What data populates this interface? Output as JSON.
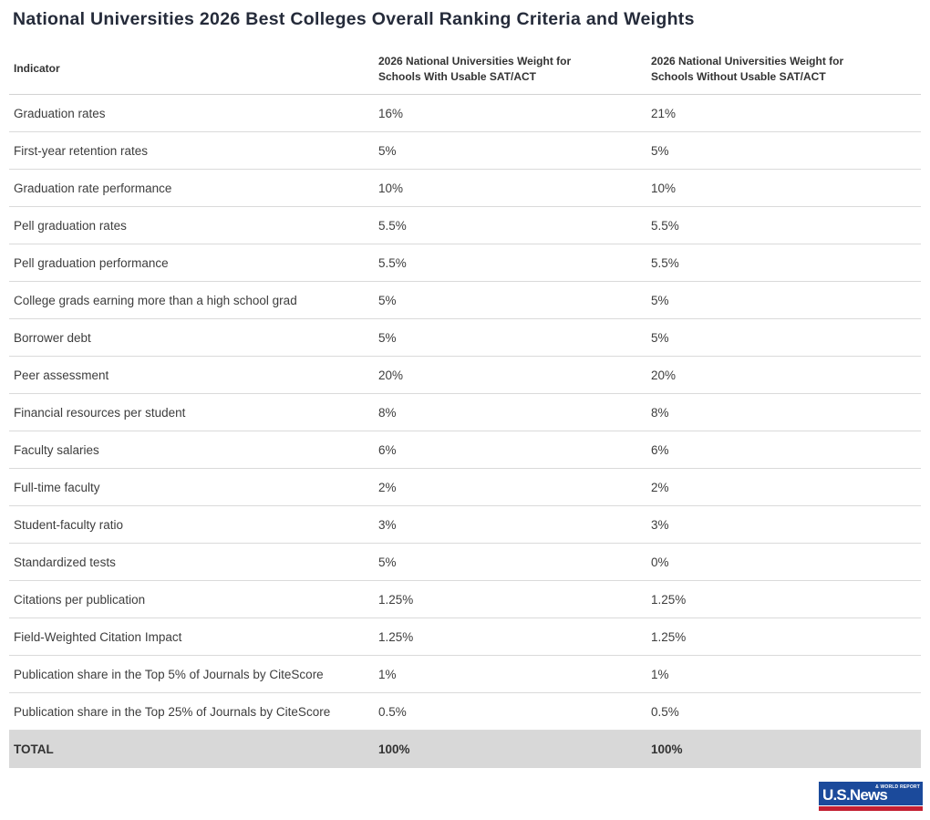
{
  "title": "National Universities 2026 Best Colleges Overall Ranking Criteria and Weights",
  "chart_data": {
    "type": "table",
    "title": "National Universities 2026 Best Colleges Overall Ranking Criteria and Weights",
    "columns": [
      "Indicator",
      "2026 National Universities Weight for Schools With Usable SAT/ACT",
      "2026 National Universities Weight for Schools Without Usable SAT/ACT"
    ],
    "rows": [
      [
        "Graduation rates",
        "16%",
        "21%"
      ],
      [
        "First-year retention rates",
        "5%",
        "5%"
      ],
      [
        "Graduation rate performance",
        "10%",
        "10%"
      ],
      [
        "Pell graduation rates",
        "5.5%",
        "5.5%"
      ],
      [
        "Pell graduation performance",
        "5.5%",
        "5.5%"
      ],
      [
        "College grads earning more than a high school grad",
        "5%",
        "5%"
      ],
      [
        "Borrower debt",
        "5%",
        "5%"
      ],
      [
        "Peer assessment",
        "20%",
        "20%"
      ],
      [
        "Financial resources per student",
        "8%",
        "8%"
      ],
      [
        "Faculty salaries",
        "6%",
        "6%"
      ],
      [
        "Full-time faculty",
        "2%",
        "2%"
      ],
      [
        "Student-faculty ratio",
        "3%",
        "3%"
      ],
      [
        "Standardized tests",
        "5%",
        "0%"
      ],
      [
        "Citations per publication",
        "1.25%",
        "1.25%"
      ],
      [
        "Field-Weighted Citation Impact",
        "1.25%",
        "1.25%"
      ],
      [
        "Publication share in the Top 5% of Journals by CiteScore",
        "1%",
        "1%"
      ],
      [
        "Publication share in the Top 25% of Journals by CiteScore",
        "0.5%",
        "0.5%"
      ]
    ],
    "total_row": [
      "TOTAL",
      "100%",
      "100%"
    ],
    "layout": {
      "grid": "horizontal-dividers-only",
      "total_row_highlighted": true
    }
  },
  "logo": {
    "name": "U.S.News",
    "tagline": "& WORLD REPORT"
  },
  "colors": {
    "title_text": "#252b3a",
    "body_text": "#3d3d3d",
    "divider": "#dadada",
    "total_row_bg": "#d8d8d8",
    "logo_blue": "#1b4a9b",
    "logo_red": "#c32032"
  }
}
